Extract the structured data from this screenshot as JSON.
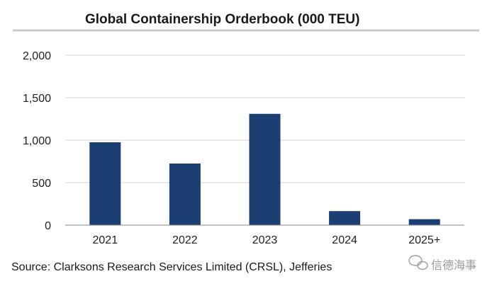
{
  "chart_data": {
    "type": "bar",
    "title": "Global Containership Orderbook (000 TEU)",
    "categories": [
      "2021",
      "2022",
      "2023",
      "2024",
      "2025+"
    ],
    "series": [
      {
        "name": "Orderbook (000 TEU)",
        "values": [
          975,
          725,
          1310,
          165,
          70
        ]
      }
    ],
    "xlabel": "",
    "ylabel": "",
    "ylim": [
      0,
      2000
    ],
    "yticks": [
      0,
      500,
      1000,
      1500,
      2000
    ],
    "ytick_labels": [
      "0",
      "500",
      "1,000",
      "1,500",
      "2,000"
    ],
    "grid": true,
    "legend": "none",
    "source": "Source: Clarksons Research Services Limited (CRSL), Jefferies"
  },
  "watermark": {
    "text": "信德海事"
  },
  "colors": {
    "bar": "#1b3f73",
    "grid": "#d6d6d6",
    "title_rule": "#c9c9c9",
    "axis": "#8a8a8a"
  }
}
